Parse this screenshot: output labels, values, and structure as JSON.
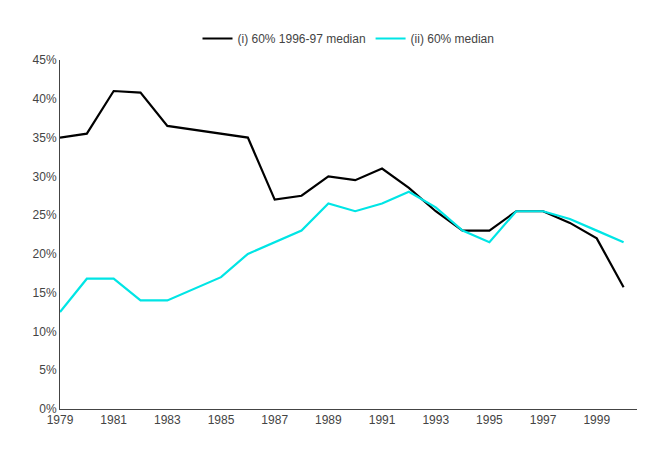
{
  "chart_data": {
    "type": "line",
    "x": [
      1979,
      1980,
      1981,
      1982,
      1983,
      1984,
      1985,
      1986,
      1987,
      1988,
      1989,
      1990,
      1991,
      1992,
      1993,
      1994,
      1995,
      1996,
      1997,
      1998,
      1999,
      2000
    ],
    "series": [
      {
        "name": "(i) 60% 1996-97 median",
        "color": "#000000",
        "values": [
          0.35,
          0.355,
          0.41,
          0.408,
          0.365,
          0.36,
          0.355,
          0.35,
          0.27,
          0.275,
          0.3,
          0.295,
          0.31,
          0.285,
          0.255,
          0.23,
          0.23,
          0.255,
          0.255,
          0.24,
          0.22,
          0.157
        ]
      },
      {
        "name": "(ii) 60% median",
        "color": "#00e5e5",
        "values": [
          0.125,
          0.168,
          0.168,
          0.14,
          0.14,
          0.155,
          0.17,
          0.2,
          0.215,
          0.23,
          0.265,
          0.255,
          0.265,
          0.28,
          0.26,
          0.23,
          0.215,
          0.255,
          0.255,
          0.245,
          0.23,
          0.215
        ]
      }
    ],
    "xlim": [
      1979,
      2000.5
    ],
    "xticks": [
      1979,
      1981,
      1983,
      1985,
      1987,
      1989,
      1991,
      1993,
      1995,
      1997,
      1999
    ],
    "ylim": [
      0,
      0.45
    ],
    "yticks": [
      {
        "value": 0.0,
        "label": "0%"
      },
      {
        "value": 0.05,
        "label": "5%"
      },
      {
        "value": 0.1,
        "label": "10%"
      },
      {
        "value": 0.15,
        "label": "15%"
      },
      {
        "value": 0.2,
        "label": "20%"
      },
      {
        "value": 0.25,
        "label": "25%"
      },
      {
        "value": 0.3,
        "label": "30%"
      },
      {
        "value": 0.35,
        "label": "35%"
      },
      {
        "value": 0.4,
        "label": "40%"
      },
      {
        "value": 0.45,
        "label": "45%"
      }
    ],
    "grid": false,
    "legend": "top"
  }
}
